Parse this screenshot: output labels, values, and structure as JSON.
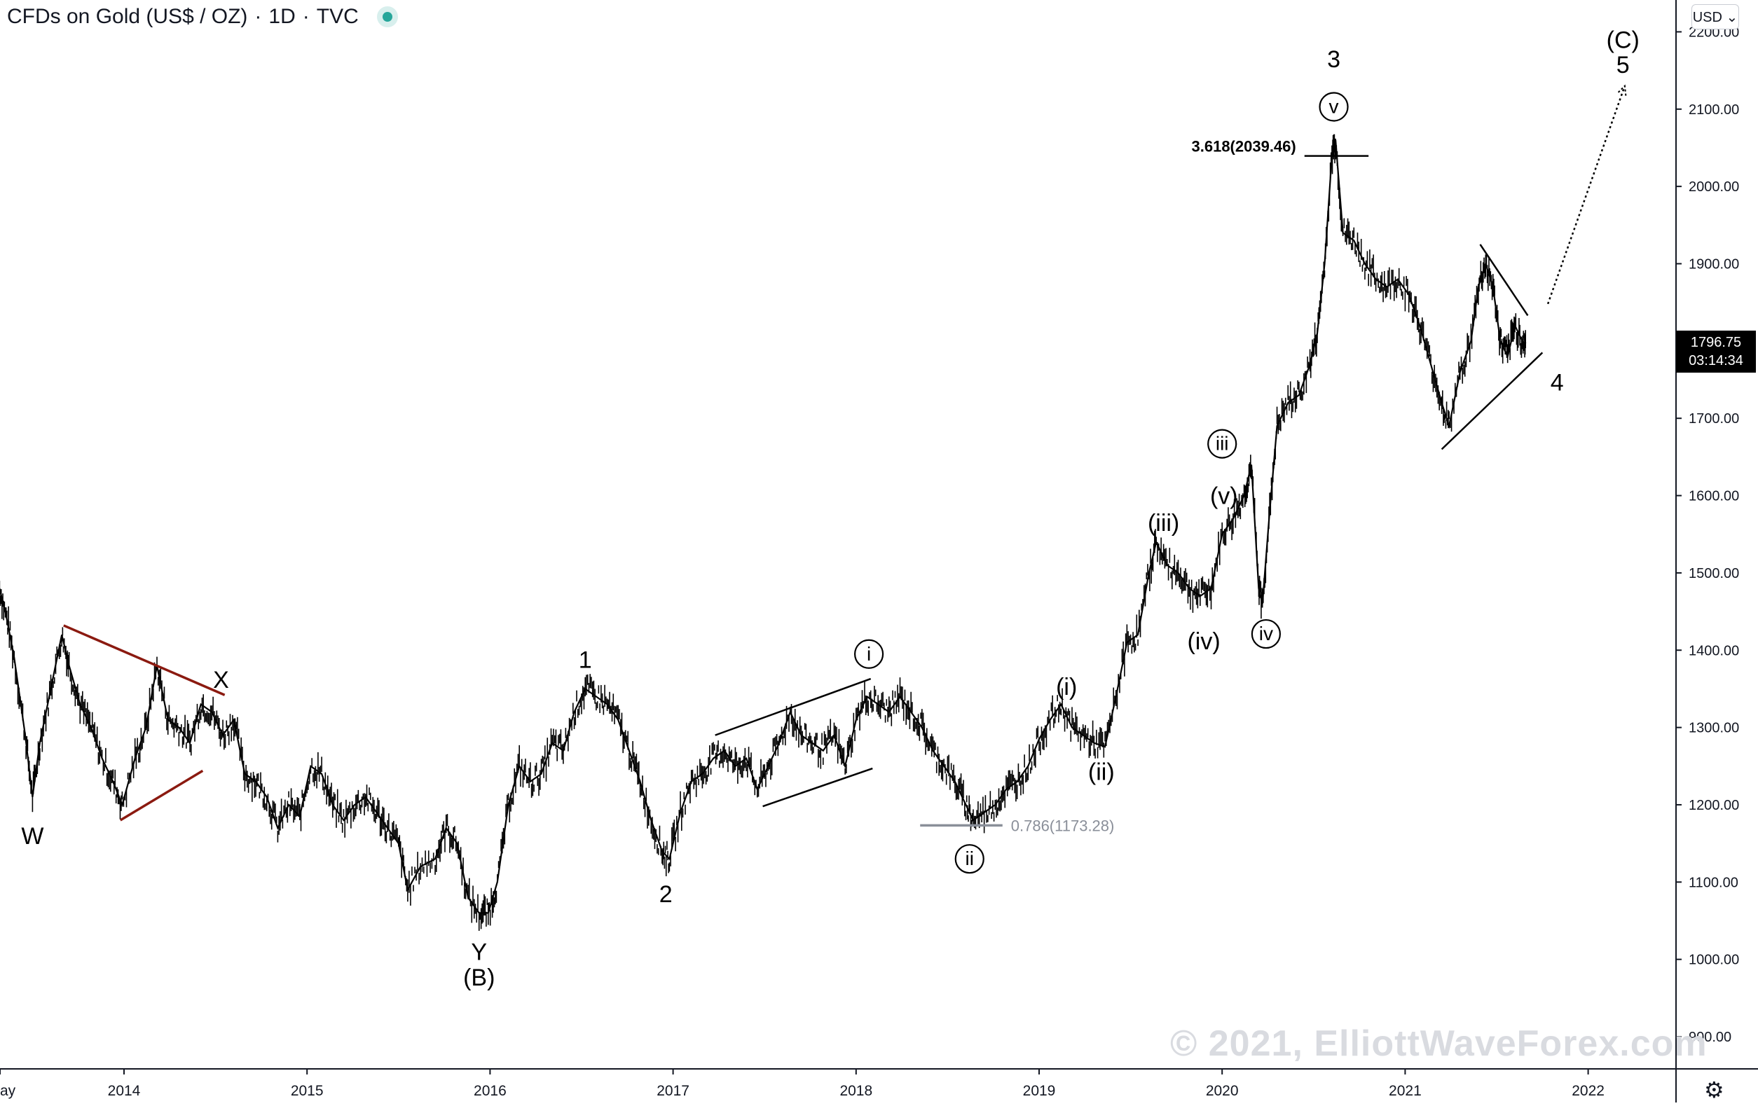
{
  "header": {
    "title": "CFDs on Gold (US$ / OZ)",
    "separator1": "·",
    "interval": "1D",
    "separator2": "·",
    "source": "TVC"
  },
  "currency": {
    "label": "USD ⌄"
  },
  "last_price": {
    "value": "1796.75",
    "countdown": "03:14:34"
  },
  "watermark": "© 2021, ElliottWaveForex.com",
  "icons": {
    "live": "live-status-dot-icon",
    "settings": "gear-icon"
  },
  "colors": {
    "candles": "#000000",
    "triangle_lines": "#8b1a10",
    "fib_line": "#8a8f99",
    "background": "#ffffff"
  },
  "chart_data": {
    "type": "line",
    "title": "CFDs on Gold (US$ / OZ) · 1D · TVC",
    "ylim": [
      850,
      2250
    ],
    "xlim": [
      2013.35,
      2022.5
    ],
    "y_ticks": [
      {
        "value": 900,
        "label": "900.00"
      },
      {
        "value": 1000,
        "label": "1000.00"
      },
      {
        "value": 1100,
        "label": "1100.00"
      },
      {
        "value": 1200,
        "label": "1200.00"
      },
      {
        "value": 1300,
        "label": "1300.00"
      },
      {
        "value": 1400,
        "label": "1400.00"
      },
      {
        "value": 1500,
        "label": "1500.00"
      },
      {
        "value": 1600,
        "label": "1600.00"
      },
      {
        "value": 1700,
        "label": "1700.00"
      },
      {
        "value": 1800,
        "label": "1800.00"
      },
      {
        "value": 1900,
        "label": "1900.00"
      },
      {
        "value": 2000,
        "label": "2000.00"
      },
      {
        "value": 2100,
        "label": "2100.00"
      },
      {
        "value": 2200,
        "label": "2200.00"
      }
    ],
    "x_ticks": [
      {
        "value": 2013.35,
        "label": "ay"
      },
      {
        "value": 2014.0,
        "label": "2014"
      },
      {
        "value": 2015.0,
        "label": "2015"
      },
      {
        "value": 2016.0,
        "label": "2016"
      },
      {
        "value": 2017.0,
        "label": "2017"
      },
      {
        "value": 2018.0,
        "label": "2018"
      },
      {
        "value": 2019.0,
        "label": "2019"
      },
      {
        "value": 2020.0,
        "label": "2020"
      },
      {
        "value": 2021.0,
        "label": "2021"
      },
      {
        "value": 2022.0,
        "label": "2022"
      }
    ],
    "series": [
      {
        "points": [
          [
            2013.32,
            1480
          ],
          [
            2013.36,
            1440
          ],
          [
            2013.4,
            1390
          ],
          [
            2013.46,
            1290
          ],
          [
            2013.5,
            1210
          ],
          [
            2013.54,
            1280
          ],
          [
            2013.6,
            1350
          ],
          [
            2013.66,
            1420
          ],
          [
            2013.7,
            1380
          ],
          [
            2013.76,
            1330
          ],
          [
            2013.82,
            1300
          ],
          [
            2013.88,
            1260
          ],
          [
            2013.94,
            1230
          ],
          [
            2013.99,
            1200
          ],
          [
            2014.06,
            1260
          ],
          [
            2014.12,
            1300
          ],
          [
            2014.18,
            1380
          ],
          [
            2014.24,
            1310
          ],
          [
            2014.3,
            1300
          ],
          [
            2014.36,
            1280
          ],
          [
            2014.42,
            1330
          ],
          [
            2014.48,
            1320
          ],
          [
            2014.54,
            1290
          ],
          [
            2014.6,
            1310
          ],
          [
            2014.66,
            1240
          ],
          [
            2014.72,
            1230
          ],
          [
            2014.78,
            1210
          ],
          [
            2014.84,
            1170
          ],
          [
            2014.9,
            1200
          ],
          [
            2014.96,
            1185
          ],
          [
            2015.02,
            1250
          ],
          [
            2015.08,
            1240
          ],
          [
            2015.14,
            1200
          ],
          [
            2015.2,
            1180
          ],
          [
            2015.26,
            1200
          ],
          [
            2015.32,
            1210
          ],
          [
            2015.38,
            1190
          ],
          [
            2015.44,
            1170
          ],
          [
            2015.5,
            1150
          ],
          [
            2015.55,
            1090
          ],
          [
            2015.62,
            1120
          ],
          [
            2015.7,
            1130
          ],
          [
            2015.76,
            1170
          ],
          [
            2015.82,
            1150
          ],
          [
            2015.88,
            1080
          ],
          [
            2015.94,
            1060
          ],
          [
            2015.99,
            1060
          ],
          [
            2016.04,
            1100
          ],
          [
            2016.1,
            1200
          ],
          [
            2016.16,
            1250
          ],
          [
            2016.22,
            1230
          ],
          [
            2016.28,
            1240
          ],
          [
            2016.34,
            1280
          ],
          [
            2016.4,
            1270
          ],
          [
            2016.46,
            1320
          ],
          [
            2016.52,
            1350
          ],
          [
            2016.58,
            1340
          ],
          [
            2016.64,
            1330
          ],
          [
            2016.7,
            1310
          ],
          [
            2016.76,
            1270
          ],
          [
            2016.82,
            1230
          ],
          [
            2016.88,
            1180
          ],
          [
            2016.94,
            1140
          ],
          [
            2016.98,
            1130
          ],
          [
            2017.04,
            1190
          ],
          [
            2017.1,
            1230
          ],
          [
            2017.16,
            1240
          ],
          [
            2017.22,
            1260
          ],
          [
            2017.28,
            1270
          ],
          [
            2017.34,
            1250
          ],
          [
            2017.4,
            1260
          ],
          [
            2017.46,
            1220
          ],
          [
            2017.52,
            1250
          ],
          [
            2017.58,
            1280
          ],
          [
            2017.64,
            1320
          ],
          [
            2017.7,
            1290
          ],
          [
            2017.76,
            1280
          ],
          [
            2017.82,
            1270
          ],
          [
            2017.88,
            1290
          ],
          [
            2017.94,
            1250
          ],
          [
            2018.0,
            1310
          ],
          [
            2018.06,
            1340
          ],
          [
            2018.12,
            1330
          ],
          [
            2018.18,
            1320
          ],
          [
            2018.24,
            1340
          ],
          [
            2018.3,
            1320
          ],
          [
            2018.36,
            1300
          ],
          [
            2018.42,
            1270
          ],
          [
            2018.48,
            1250
          ],
          [
            2018.54,
            1230
          ],
          [
            2018.6,
            1200
          ],
          [
            2018.64,
            1180
          ],
          [
            2018.7,
            1190
          ],
          [
            2018.76,
            1200
          ],
          [
            2018.82,
            1220
          ],
          [
            2018.88,
            1230
          ],
          [
            2018.94,
            1250
          ],
          [
            2019.0,
            1285
          ],
          [
            2019.06,
            1310
          ],
          [
            2019.12,
            1330
          ],
          [
            2019.18,
            1300
          ],
          [
            2019.24,
            1290
          ],
          [
            2019.3,
            1280
          ],
          [
            2019.36,
            1275
          ],
          [
            2019.42,
            1340
          ],
          [
            2019.48,
            1410
          ],
          [
            2019.54,
            1420
          ],
          [
            2019.6,
            1500
          ],
          [
            2019.64,
            1540
          ],
          [
            2019.7,
            1510
          ],
          [
            2019.76,
            1500
          ],
          [
            2019.82,
            1480
          ],
          [
            2019.88,
            1470
          ],
          [
            2019.94,
            1480
          ],
          [
            2020.0,
            1550
          ],
          [
            2020.06,
            1570
          ],
          [
            2020.12,
            1600
          ],
          [
            2020.16,
            1640
          ],
          [
            2020.2,
            1480
          ],
          [
            2020.22,
            1460
          ],
          [
            2020.26,
            1580
          ],
          [
            2020.3,
            1690
          ],
          [
            2020.36,
            1720
          ],
          [
            2020.42,
            1730
          ],
          [
            2020.48,
            1770
          ],
          [
            2020.52,
            1810
          ],
          [
            2020.56,
            1900
          ],
          [
            2020.6,
            2040
          ],
          [
            2020.62,
            2060
          ],
          [
            2020.66,
            1940
          ],
          [
            2020.72,
            1930
          ],
          [
            2020.78,
            1900
          ],
          [
            2020.84,
            1880
          ],
          [
            2020.9,
            1870
          ],
          [
            2020.96,
            1880
          ],
          [
            2021.02,
            1860
          ],
          [
            2021.08,
            1820
          ],
          [
            2021.14,
            1770
          ],
          [
            2021.2,
            1720
          ],
          [
            2021.24,
            1690
          ],
          [
            2021.3,
            1760
          ],
          [
            2021.36,
            1800
          ],
          [
            2021.4,
            1870
          ],
          [
            2021.44,
            1900
          ],
          [
            2021.48,
            1870
          ],
          [
            2021.52,
            1800
          ],
          [
            2021.56,
            1780
          ],
          [
            2021.6,
            1820
          ],
          [
            2021.64,
            1800
          ],
          [
            2021.66,
            1796.75
          ]
        ]
      }
    ]
  },
  "annotations": {
    "wave_labels": [
      {
        "text": "W",
        "x": 2013.5,
        "y": 1160
      },
      {
        "text": "X",
        "x": 2014.53,
        "y": 1362
      },
      {
        "text": "Y",
        "x": 2015.94,
        "y": 1010
      },
      {
        "text": "(B)",
        "x": 2015.94,
        "y": 977
      },
      {
        "text": "1",
        "x": 2016.52,
        "y": 1388
      },
      {
        "text": "2",
        "x": 2016.96,
        "y": 1085
      },
      {
        "text": "(i)",
        "x": 2019.15,
        "y": 1353
      },
      {
        "text": "(ii)",
        "x": 2019.34,
        "y": 1243
      },
      {
        "text": "(iii)",
        "x": 2019.68,
        "y": 1565
      },
      {
        "text": "(iv)",
        "x": 2019.9,
        "y": 1412
      },
      {
        "text": "(v)",
        "x": 2020.01,
        "y": 1600
      },
      {
        "text": "3",
        "x": 2020.61,
        "y": 2165
      },
      {
        "text": "4",
        "x": 2021.83,
        "y": 1747
      },
      {
        "text": "(C)",
        "x": 2022.19,
        "y": 2190
      },
      {
        "text": "5",
        "x": 2022.19,
        "y": 2158
      }
    ],
    "circled_labels": [
      {
        "text": "i",
        "x": 2018.07,
        "y": 1395
      },
      {
        "text": "ii",
        "x": 2018.62,
        "y": 1130
      },
      {
        "text": "iii",
        "x": 2020.0,
        "y": 1667
      },
      {
        "text": "iv",
        "x": 2020.24,
        "y": 1421
      },
      {
        "text": "v",
        "x": 2020.61,
        "y": 2103
      }
    ],
    "fib_levels": [
      {
        "text": "3.618(2039.46)",
        "value": 2039.46,
        "x_start": 2020.45,
        "x_end": 2020.8
      },
      {
        "text": "0.786(1173.28)",
        "value": 1173.28,
        "x_start": 2018.35,
        "x_end": 2018.8
      }
    ],
    "trendlines": [
      {
        "style": "triangle",
        "from": [
          2013.67,
          1432
        ],
        "to": [
          2014.55,
          1342
        ]
      },
      {
        "style": "triangle",
        "from": [
          2013.98,
          1180
        ],
        "to": [
          2014.43,
          1244
        ]
      },
      {
        "style": "plain",
        "from": [
          2017.23,
          1290
        ],
        "to": [
          2018.08,
          1363
        ]
      },
      {
        "style": "plain",
        "from": [
          2017.49,
          1198
        ],
        "to": [
          2018.09,
          1247
        ]
      },
      {
        "style": "plain",
        "from": [
          2021.41,
          1925
        ],
        "to": [
          2021.67,
          1833
        ]
      },
      {
        "style": "plain",
        "from": [
          2021.2,
          1660
        ],
        "to": [
          2021.75,
          1785
        ]
      }
    ],
    "projection": {
      "from": [
        2021.78,
        1848
      ],
      "to": [
        2022.2,
        2130
      ]
    }
  }
}
